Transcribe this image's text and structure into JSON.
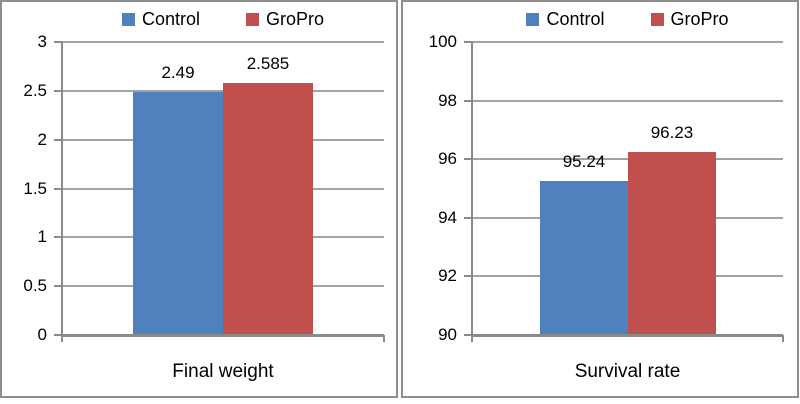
{
  "figure": {
    "background": "#ffffff",
    "panel_border_color": "#8e8e8e",
    "gridline_color": "#a3a3a3",
    "axis_color": "#8a8a8a"
  },
  "chart_data": [
    {
      "type": "bar",
      "title": "",
      "xlabel": "Final weight",
      "ylabel": "",
      "categories": [
        "Final weight"
      ],
      "series": [
        {
          "name": "Control",
          "color": "#4F81BD",
          "values": [
            2.49
          ],
          "data_labels": [
            "2.49"
          ]
        },
        {
          "name": "GroPro",
          "color": "#C0504D",
          "values": [
            2.585
          ],
          "data_labels": [
            "2.585"
          ]
        }
      ],
      "ylim": [
        0,
        3
      ],
      "yticks": [
        0,
        0.5,
        1,
        1.5,
        2,
        2.5,
        3
      ],
      "ytick_labels": [
        "0",
        "0.5",
        "1",
        "1.5",
        "2",
        "2.5",
        "3"
      ],
      "grid": true,
      "legend_position": "top",
      "legend_entries": [
        "Control",
        "GroPro"
      ]
    },
    {
      "type": "bar",
      "title": "",
      "xlabel": "Survival rate",
      "ylabel": "",
      "categories": [
        "Survival rate"
      ],
      "series": [
        {
          "name": "Control",
          "color": "#4F81BD",
          "values": [
            95.24
          ],
          "data_labels": [
            "95.24"
          ]
        },
        {
          "name": "GroPro",
          "color": "#C0504D",
          "values": [
            96.23
          ],
          "data_labels": [
            "96.23"
          ]
        }
      ],
      "ylim": [
        90,
        100
      ],
      "yticks": [
        90,
        92,
        94,
        96,
        98,
        100
      ],
      "ytick_labels": [
        "90",
        "92",
        "94",
        "96",
        "98",
        "100"
      ],
      "grid": true,
      "legend_position": "top",
      "legend_entries": [
        "Control",
        "GroPro"
      ]
    }
  ]
}
